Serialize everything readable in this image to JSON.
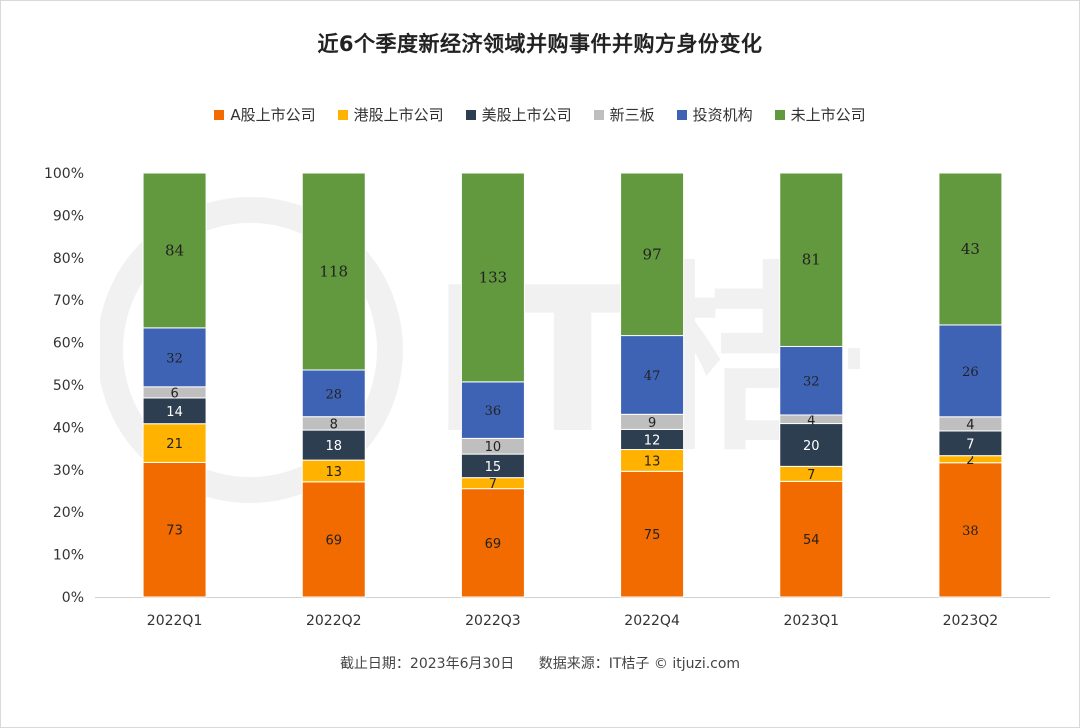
{
  "title": "近6个季度新经济领域并购事件并购方身份变化",
  "footer": {
    "date_text": "截止日期：2023年6月30日",
    "source_text": "数据来源：IT桔子 © itjuzi.com"
  },
  "watermark_text": "IT桔子 itjuzi.com",
  "chart_data": {
    "type": "bar",
    "stacked": true,
    "normalized": true,
    "categories": [
      "2022Q1",
      "2022Q2",
      "2022Q3",
      "2022Q4",
      "2023Q1",
      "2023Q2"
    ],
    "series": [
      {
        "name": "A股上市公司",
        "color": "#F26B00",
        "values": [
          73,
          69,
          69,
          75,
          54,
          38
        ]
      },
      {
        "name": "港股上市公司",
        "color": "#FFB300",
        "values": [
          21,
          13,
          7,
          13,
          7,
          2
        ]
      },
      {
        "name": "美股上市公司",
        "color": "#2D3E50",
        "values": [
          14,
          18,
          15,
          12,
          20,
          7
        ]
      },
      {
        "name": "新三板",
        "color": "#BFBFBF",
        "values": [
          6,
          8,
          10,
          9,
          4,
          4
        ]
      },
      {
        "name": "投资机构",
        "color": "#3E63B5",
        "values": [
          32,
          28,
          36,
          47,
          32,
          26
        ]
      },
      {
        "name": "未上市公司",
        "color": "#62993E",
        "values": [
          84,
          118,
          133,
          97,
          81,
          43
        ]
      }
    ],
    "yticks": [
      "0%",
      "10%",
      "20%",
      "30%",
      "40%",
      "50%",
      "60%",
      "70%",
      "80%",
      "90%",
      "100%"
    ],
    "ylim": [
      0,
      100
    ],
    "legend": "top",
    "grid": false
  }
}
